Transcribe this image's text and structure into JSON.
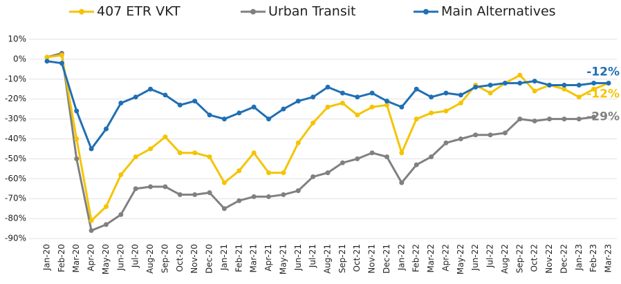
{
  "chart_data": {
    "type": "line",
    "categories": [
      "Jan-20",
      "Feb-20",
      "Mar-20",
      "Apr-20",
      "May-20",
      "Jun-20",
      "Jul-20",
      "Aug-20",
      "Sep-20",
      "Oct-20",
      "Nov-20",
      "Dec-20",
      "Jan-21",
      "Feb-21",
      "Mar-21",
      "Apr-21",
      "May-21",
      "Jun-21",
      "Jul-21",
      "Aug-21",
      "Sep-21",
      "Oct-21",
      "Nov-21",
      "Dec-21",
      "Jan-22",
      "Feb-22",
      "Mar-22",
      "Apr-22",
      "May-22",
      "Jun-22",
      "Jul-22",
      "Aug-22",
      "Sep-22",
      "Oct-22",
      "Nov-22",
      "Dec-22",
      "Jan-23",
      "Feb-23",
      "Mar-23"
    ],
    "series": [
      {
        "name": "407 ETR VKT",
        "color": "#f5c400",
        "values": [
          1,
          2,
          -40,
          -81,
          -74,
          -58,
          -49,
          -45,
          -39,
          -47,
          -47,
          -49,
          -62,
          -56,
          -47,
          -57,
          -57,
          -42,
          -32,
          -24,
          -22,
          -28,
          -24,
          -23,
          -47,
          -30,
          -27,
          -26,
          -22,
          -13,
          -17,
          -12,
          -8,
          -16,
          -13,
          -15,
          -19,
          -15,
          -12
        ],
        "value_labels": [
          null,
          null,
          null,
          null,
          null,
          null,
          null,
          null,
          null,
          null,
          null,
          null,
          null,
          null,
          null,
          null,
          null,
          null,
          null,
          null,
          null,
          null,
          null,
          null,
          null,
          null,
          null,
          null,
          null,
          null,
          null,
          null,
          null,
          null,
          null,
          null,
          null,
          null,
          "-12%"
        ]
      },
      {
        "name": "Urban Transit",
        "color": "#808080",
        "values": [
          1,
          3,
          -50,
          -86,
          -83,
          -78,
          -65,
          -64,
          -64,
          -68,
          -68,
          -67,
          -75,
          -71,
          -69,
          -69,
          -68,
          -66,
          -59,
          -57,
          -52,
          -50,
          -47,
          -49,
          -62,
          -53,
          -49,
          -42,
          -40,
          -38,
          -38,
          -37,
          -30,
          -31,
          -30,
          -30,
          -30,
          -29,
          null
        ],
        "value_labels": [
          null,
          null,
          null,
          null,
          null,
          null,
          null,
          null,
          null,
          null,
          null,
          null,
          null,
          null,
          null,
          null,
          null,
          null,
          null,
          null,
          null,
          null,
          null,
          null,
          null,
          null,
          null,
          null,
          null,
          null,
          null,
          null,
          null,
          null,
          null,
          null,
          null,
          "-29%",
          null
        ]
      },
      {
        "name": "Main Alternatives",
        "color": "#1f6fb5",
        "values": [
          -1,
          -2,
          -26,
          -45,
          -35,
          -22,
          -19,
          -15,
          -18,
          -23,
          -21,
          -28,
          -30,
          -27,
          -24,
          -30,
          -25,
          -21,
          -19,
          -14,
          -17,
          -19,
          -17,
          -21,
          -24,
          -15,
          -19,
          -17,
          -18,
          -14,
          -13,
          -12,
          -12,
          -11,
          -13,
          -13,
          -13,
          -12,
          -12
        ],
        "value_labels": [
          null,
          null,
          null,
          null,
          null,
          null,
          null,
          null,
          null,
          null,
          null,
          null,
          null,
          null,
          null,
          null,
          null,
          null,
          null,
          null,
          null,
          null,
          null,
          null,
          null,
          null,
          null,
          null,
          null,
          null,
          null,
          null,
          null,
          null,
          null,
          null,
          null,
          null,
          "-12%"
        ]
      }
    ],
    "ylim": [
      -90,
      10
    ],
    "yticks": [
      {
        "value": -90,
        "label": "-90%"
      },
      {
        "value": -80,
        "label": "-80%"
      },
      {
        "value": -70,
        "label": "-70%"
      },
      {
        "value": -60,
        "label": "-60%"
      },
      {
        "value": -50,
        "label": "-50%"
      },
      {
        "value": -40,
        "label": "-40%"
      },
      {
        "value": -30,
        "label": "-30%"
      },
      {
        "value": -20,
        "label": "-20%"
      },
      {
        "value": -10,
        "label": "-10%"
      },
      {
        "value": 0,
        "label": "0%"
      },
      {
        "value": 10,
        "label": "10%"
      }
    ],
    "grid": true,
    "legend": "top"
  }
}
